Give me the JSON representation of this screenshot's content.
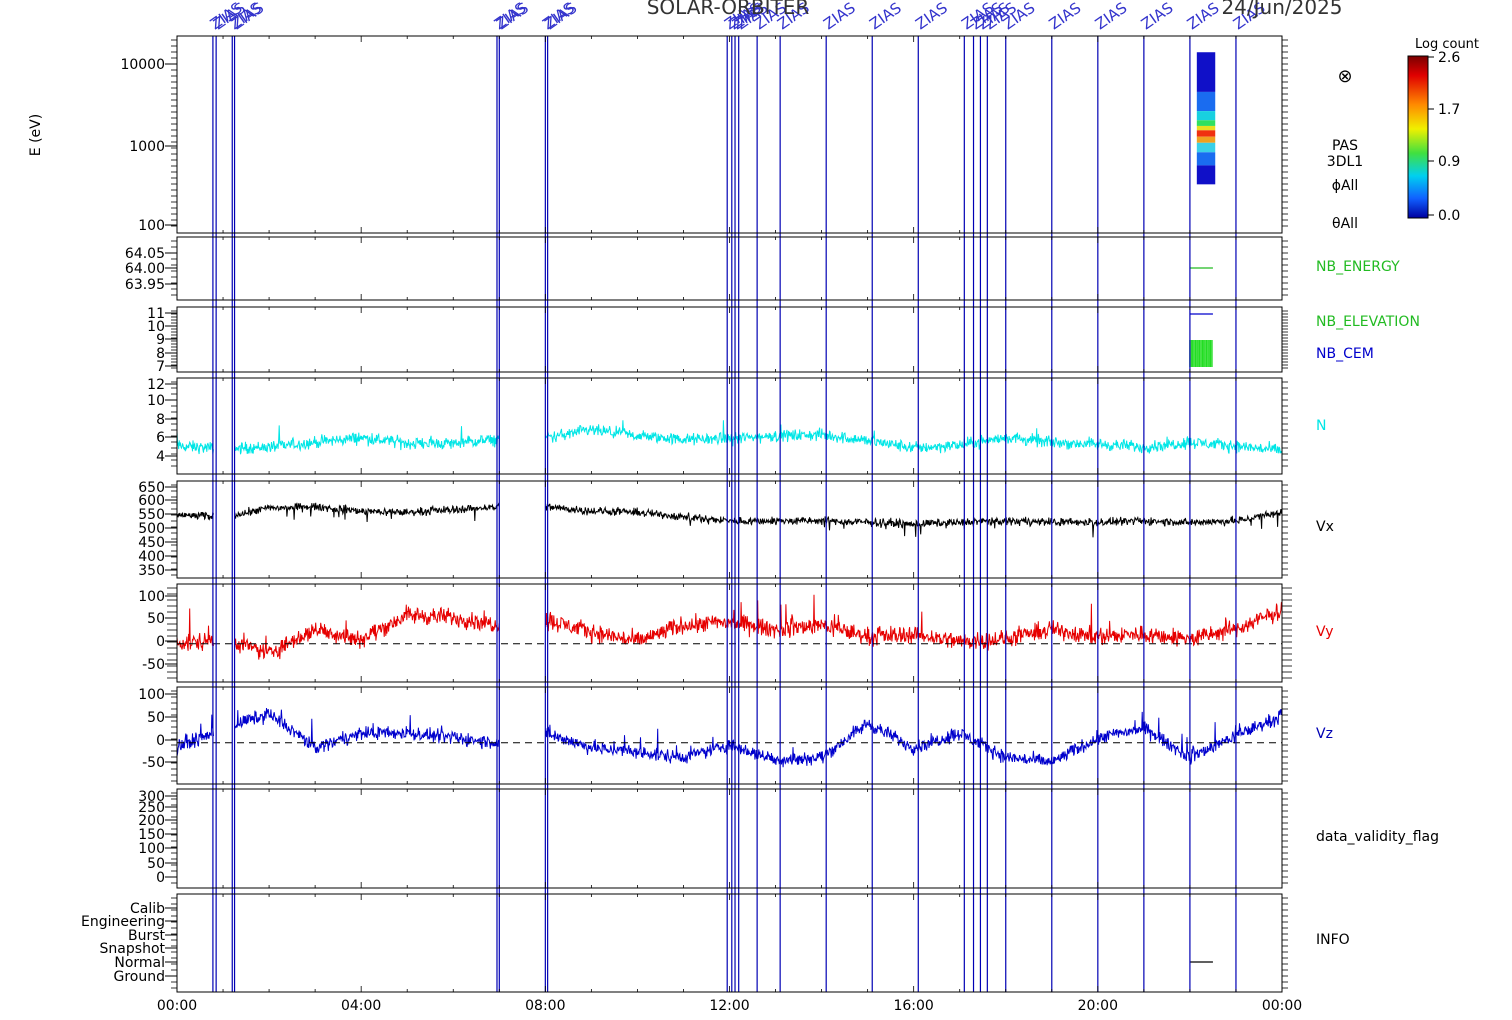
{
  "header": {
    "mission": "SOLAR-ORBITER",
    "date": "24/Jun/2025"
  },
  "annotation_label": "ZIAS",
  "colorbar": {
    "title": "Log count",
    "ticks": [
      "2.6",
      "1.7",
      "0.9",
      "0.0"
    ]
  },
  "colors": {
    "frame": "#000000",
    "event_lines": "#0000b4",
    "N": "#00e6e6",
    "Vx": "#000000",
    "Vy": "#e60000",
    "Vz": "#0000cd",
    "nb_energy": "#22bb22",
    "nb_cem": "#0000cc"
  },
  "chart_data": {
    "type": "line",
    "x_axis": {
      "range_hours": [
        0,
        24
      ],
      "ticks": [
        "00:00",
        "04:00",
        "08:00",
        "12:00",
        "16:00",
        "20:00",
        "00:00"
      ]
    },
    "event_markers_hours": [
      0.78,
      0.85,
      1.2,
      1.25,
      6.95,
      7.0,
      8.0,
      8.05,
      11.95,
      12.05,
      12.12,
      12.2,
      12.6,
      13.1,
      14.1,
      15.1,
      16.1,
      17.1,
      17.3,
      17.45,
      17.6,
      18.0,
      19.0,
      20.0,
      21.0,
      22.0,
      23.0
    ],
    "data_gap_hours": [
      [
        0.8,
        1.25
      ],
      [
        7.0,
        8.0
      ]
    ],
    "panels": [
      {
        "id": "spectrogram",
        "ylabel": "E (eV)",
        "ylabels": [
          "10000",
          "1000",
          "100"
        ],
        "right_labels": [
          "PAS",
          "3DL1",
          "ϕAll",
          "θAll"
        ],
        "symbol": "⊗",
        "data_window_hours": [
          22.15,
          22.55
        ],
        "energy_range_ev": [
          320,
          14000
        ]
      },
      {
        "id": "nb_energy",
        "ylabels": [
          "64.05",
          "64.00",
          "63.95"
        ],
        "right_labels": [
          "NB_ENERGY"
        ],
        "value": 64.0,
        "window_hours": [
          22.0,
          22.5
        ]
      },
      {
        "id": "nb_elevation_cem",
        "ylabels": [
          "11",
          "10",
          "9",
          "8",
          "7"
        ],
        "right_labels": [
          "NB_ELEVATION",
          "NB_CEM"
        ],
        "elevation_value": 11,
        "cem_range": [
          7,
          9
        ],
        "window_hours": [
          22.0,
          22.5
        ]
      },
      {
        "id": "N",
        "ylabels": [
          "12",
          "10",
          "8",
          "6",
          "4"
        ],
        "right_labels": [
          "N"
        ],
        "ylim": [
          2.3,
          12.6
        ],
        "series": [
          {
            "name": "N",
            "x": [
              0,
              1,
              2,
              3,
              4,
              5,
              6,
              7,
              8,
              9,
              10,
              11,
              12,
              13,
              14,
              15,
              16,
              17,
              18,
              19,
              20,
              21,
              22,
              23,
              24
            ],
            "values": [
              5.3,
              5.0,
              5.2,
              5.7,
              6.2,
              5.6,
              5.6,
              6.0,
              6.2,
              7.0,
              6.4,
              6.0,
              6.1,
              6.4,
              6.5,
              5.9,
              5.1,
              5.4,
              6.2,
              5.7,
              5.5,
              5.2,
              5.7,
              5.3,
              4.8
            ]
          }
        ]
      },
      {
        "id": "Vx",
        "ylabels": [
          "650",
          "600",
          "550",
          "500",
          "450",
          "400",
          "350"
        ],
        "right_labels": [
          "Vx"
        ],
        "ylim": [
          325,
          665
        ],
        "series": [
          {
            "name": "Vx",
            "x": [
              0,
              1,
              2,
              3,
              4,
              5,
              6,
              7,
              8,
              9,
              10,
              11,
              12,
              13,
              14,
              15,
              16,
              17,
              18,
              19,
              20,
              21,
              22,
              23,
              24
            ],
            "values": [
              545,
              540,
              570,
              575,
              560,
              555,
              565,
              575,
              575,
              560,
              555,
              540,
              525,
              525,
              525,
              520,
              515,
              520,
              525,
              522,
              520,
              525,
              520,
              525,
              555
            ]
          }
        ]
      },
      {
        "id": "Vy",
        "ylabels": [
          "100",
          "50",
          "0",
          "-50"
        ],
        "right_labels": [
          "Vy"
        ],
        "ylim": [
          -80,
          125
        ],
        "series": [
          {
            "name": "Vy",
            "x": [
              0,
              1,
              2,
              3,
              4,
              5,
              6,
              7,
              8,
              9,
              10,
              11,
              12,
              13,
              14,
              15,
              16,
              17,
              18,
              19,
              20,
              21,
              22,
              23,
              24
            ],
            "values": [
              0,
              10,
              -20,
              30,
              10,
              60,
              55,
              40,
              50,
              25,
              5,
              40,
              45,
              30,
              40,
              15,
              20,
              5,
              10,
              30,
              15,
              20,
              10,
              30,
              70
            ]
          }
        ]
      },
      {
        "id": "Vz",
        "ylabels": [
          "100",
          "50",
          "0",
          "-50"
        ],
        "right_labels": [
          "Vz"
        ],
        "ylim": [
          -85,
          115
        ],
        "series": [
          {
            "name": "Vz",
            "x": [
              0,
              1,
              2,
              3,
              4,
              5,
              6,
              7,
              8,
              9,
              10,
              11,
              12,
              13,
              14,
              15,
              16,
              17,
              18,
              19,
              20,
              21,
              22,
              23,
              24
            ],
            "values": [
              -10,
              30,
              60,
              -10,
              20,
              20,
              10,
              0,
              20,
              -10,
              -20,
              -30,
              -5,
              -35,
              -30,
              40,
              -10,
              20,
              -30,
              -40,
              10,
              30,
              -30,
              15,
              55
            ]
          }
        ]
      },
      {
        "id": "data_validity_flag",
        "ylabels": [
          "300",
          "250",
          "200",
          "150",
          "100",
          "50",
          "0"
        ],
        "right_labels": [
          "data_validity_flag"
        ]
      },
      {
        "id": "info",
        "ylabels": [
          "Calib",
          "Engineering",
          "Burst",
          "Snapshot",
          "Normal",
          "Ground"
        ],
        "right_labels": [
          "INFO"
        ],
        "mode": "Normal",
        "window_hours": [
          22.0,
          22.5
        ]
      }
    ]
  }
}
